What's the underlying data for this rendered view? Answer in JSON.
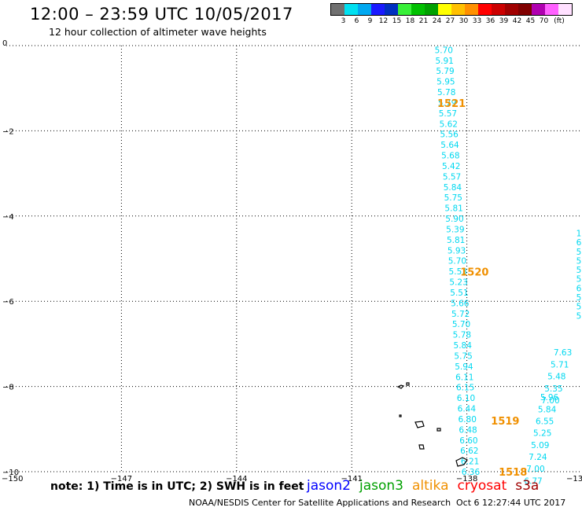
{
  "header": {
    "title": "12:00 – 23:59 UTC 10/05/2017",
    "subtitle": "12 hour collection of altimeter wave heights"
  },
  "legend": {
    "unit": "(ft)",
    "colors": [
      "#707070",
      "#00e0f0",
      "#00a8f0",
      "#1a1aff",
      "#0030c0",
      "#38f038",
      "#00c000",
      "#00a000",
      "#ffff00",
      "#ffc000",
      "#ff9000",
      "#ff0000",
      "#cc0000",
      "#a00000",
      "#800000",
      "#b000b0",
      "#ff60ff",
      "#ffe0ff"
    ],
    "labels": [
      "3",
      "6",
      "9",
      "12",
      "15",
      "18",
      "21",
      "24",
      "27",
      "30",
      "33",
      "36",
      "39",
      "42",
      "45",
      "70"
    ]
  },
  "map": {
    "x_ticks": [
      "−147",
      "−144",
      "−141",
      "−138"
    ],
    "edge_left_lon": "−150",
    "edge_right_lon": "−13",
    "y_ticks": [
      "0",
      "−2",
      "−4",
      "−6",
      "−8",
      "−10"
    ]
  },
  "chart_data": {
    "type": "scatter",
    "xlim": [
      -150,
      -135
    ],
    "ylim": [
      -10,
      0
    ],
    "point_color": "#00d8f0",
    "track_label_color": "#f09000",
    "track_main": {
      "x_start": -138.6,
      "x_end": -137.9,
      "values": [
        "5.70",
        "5.91",
        "5.79",
        "5.95",
        "5.78",
        "5.79",
        "5.57",
        "5.62",
        "5.56",
        "5.64",
        "5.68",
        "5.42",
        "5.57",
        "5.84",
        "5.75",
        "5.81",
        "5.90",
        "5.39",
        "5.81",
        "5.93",
        "5.70",
        "5.53",
        "5.23",
        "5.51",
        "5.66",
        "5.72",
        "5.70",
        "5.78",
        "5.84",
        "5.75",
        "5.94",
        "6.11",
        "6.15",
        "6.10",
        "6.44",
        "6.80",
        "6.48",
        "6.60",
        "6.62",
        "6.21",
        "6.36"
      ]
    },
    "track_east": {
      "values": [
        "5.96",
        "5.84",
        "6.55",
        "5.25",
        "5.09",
        "7.24",
        "7.00",
        "6.77"
      ]
    },
    "track_east_upper": [
      "7.63",
      "5.71",
      "5.48",
      "5.35",
      "7.00"
    ],
    "track_east_partial": [
      "1",
      "6",
      "5",
      "5",
      "5.8",
      "5.1",
      "6.84",
      "5.88",
      "5.56",
      "5.42"
    ],
    "track_labels": [
      {
        "text": "1521",
        "lon": -138.4,
        "lat": -1.35
      },
      {
        "text": "1520",
        "lon": -137.8,
        "lat": -5.3
      },
      {
        "text": "1519",
        "lon": -137.0,
        "lat": -8.8
      },
      {
        "text": "1518",
        "lon": -136.8,
        "lat": -10.0
      }
    ]
  },
  "notes": {
    "note": "note: 1) Time is in UTC; 2) SWH is in feet",
    "satellites": [
      {
        "name": "jason2",
        "color": "#0000ff"
      },
      {
        "name": "jason3",
        "color": "#00a000"
      },
      {
        "name": "altika",
        "color": "#f09000"
      },
      {
        "name": "cryosat",
        "color": "#ff0000"
      },
      {
        "name": "s3a",
        "color": "#a00000"
      }
    ],
    "footer": "NOAA/NESDIS Center for Satellite Applications and Research",
    "footer_time": "Oct  6 12:27:44 UTC 2017"
  }
}
